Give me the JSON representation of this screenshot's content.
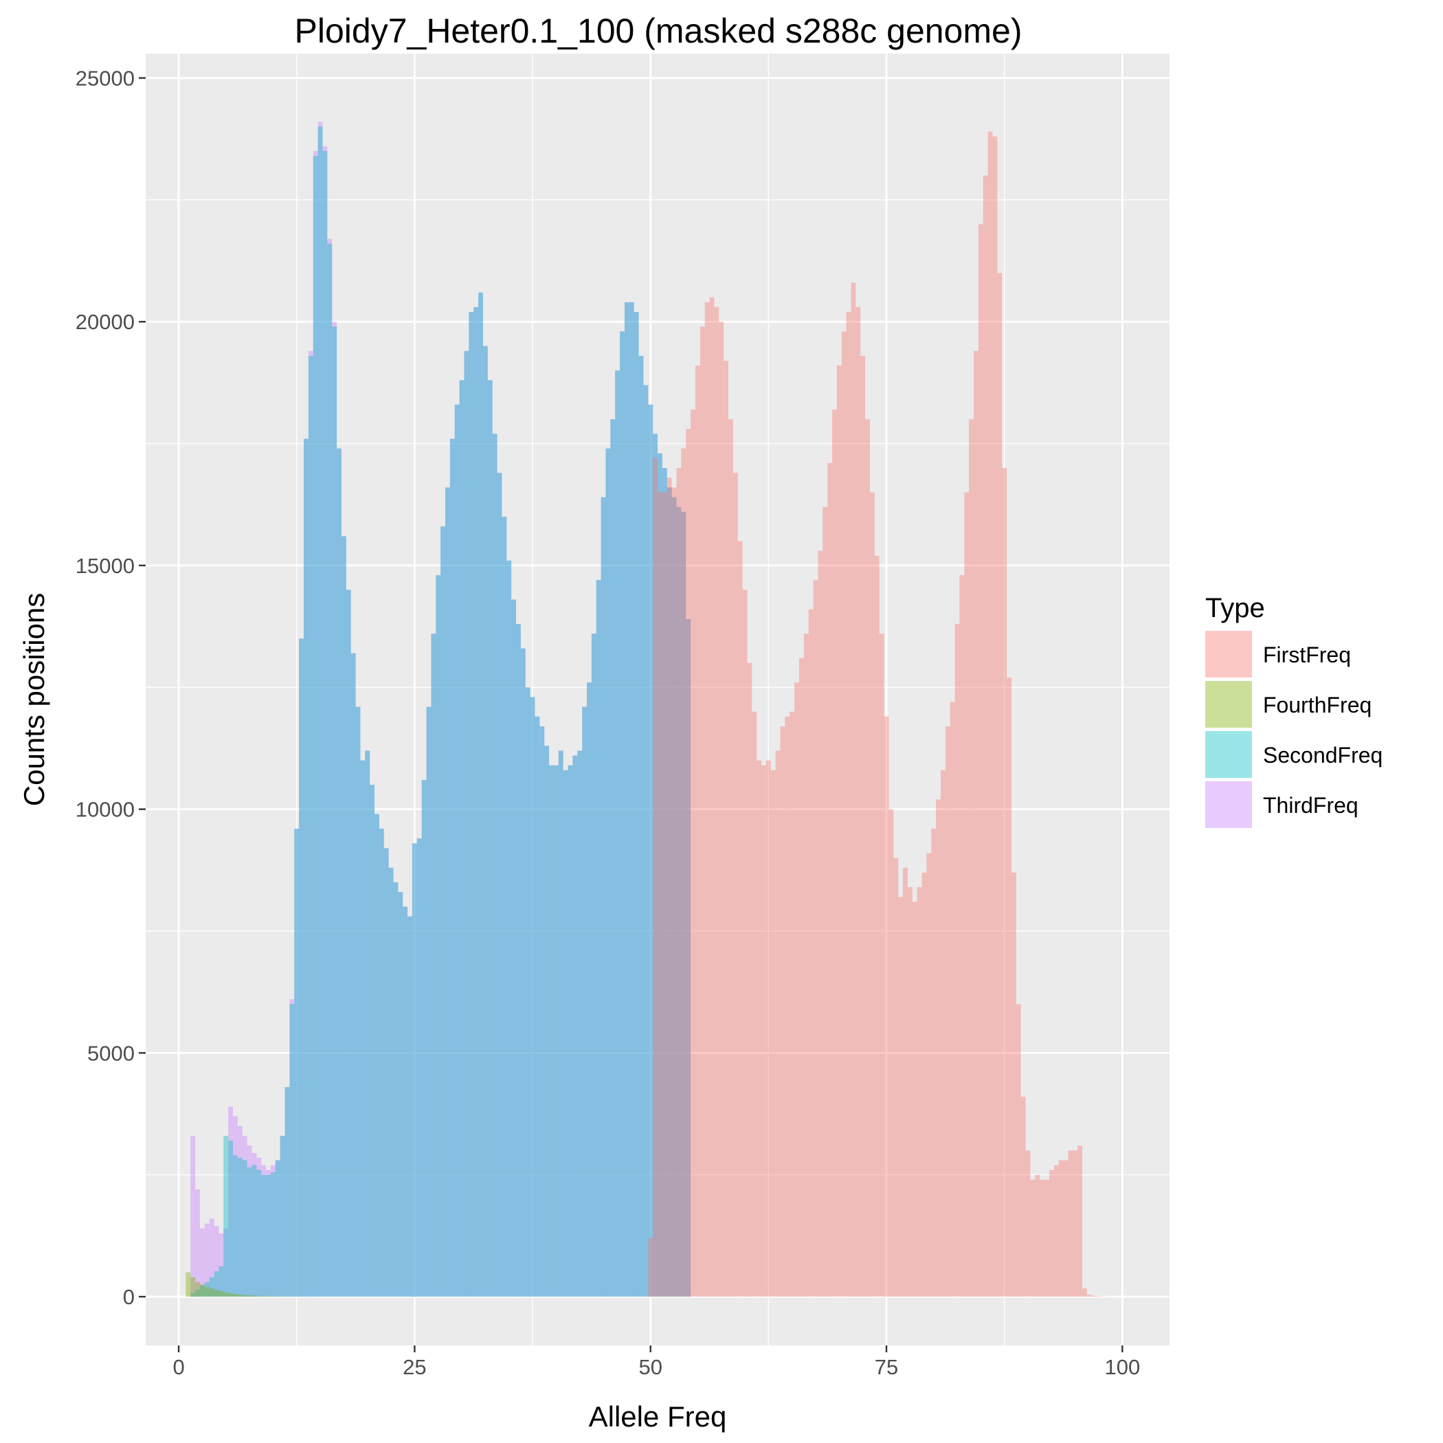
{
  "chart_data": {
    "type": "bar",
    "title": "Ploidy7_Heter0.1_100 (masked s288c genome)",
    "xlabel": "Allele Freq",
    "ylabel": "Counts positions",
    "xlim": [
      -3.5,
      105
    ],
    "ylim": [
      -1000,
      25500
    ],
    "x_ticks": [
      0,
      25,
      50,
      75,
      100
    ],
    "y_ticks": [
      0,
      5000,
      10000,
      15000,
      20000,
      25000
    ],
    "x_tick_labels": [
      "0",
      "25",
      "50",
      "75",
      "100"
    ],
    "y_tick_labels": [
      "0",
      "5000",
      "10000",
      "15000",
      "20000",
      "25000"
    ],
    "bin_width": 0.5,
    "grid": true,
    "panel_background": "#EBEBEB",
    "legend": {
      "title": "Type",
      "position": "right",
      "entries": [
        "FirstFreq",
        "FourthFreq",
        "SecondFreq",
        "ThirdFreq"
      ]
    },
    "series": [
      {
        "name": "FirstFreq",
        "color": "#F8766D",
        "x_start": 49.75,
        "values": [
          1200,
          17200,
          16500,
          16500,
          16800,
          16600,
          17000,
          17400,
          17800,
          18200,
          19100,
          19900,
          20400,
          20500,
          20300,
          20000,
          19200,
          18000,
          16900,
          15500,
          14500,
          13000,
          12000,
          11000,
          10900,
          11000,
          10800,
          11200,
          11700,
          11900,
          12000,
          12600,
          13100,
          13600,
          14100,
          14700,
          15300,
          16200,
          17100,
          18200,
          19100,
          19800,
          20200,
          20800,
          20300,
          19300,
          18000,
          16500,
          15200,
          13600,
          11900,
          10000,
          9000,
          8200,
          8800,
          8400,
          8100,
          8400,
          8700,
          9100,
          9600,
          10200,
          10800,
          11700,
          12200,
          13800,
          14800,
          16500,
          18000,
          19400,
          22000,
          23000,
          23900,
          23800,
          21000,
          17000,
          12700,
          8700,
          6000,
          4100,
          3000,
          2400,
          2500,
          2400,
          2400,
          2600,
          2700,
          2800,
          2800,
          3000,
          3000,
          3100,
          170,
          40,
          20,
          10,
          5,
          3,
          2,
          1,
          1,
          1
        ]
      },
      {
        "name": "FourthFreq",
        "color": "#7CAE00",
        "x_start": 0.75,
        "values": [
          500,
          400,
          300,
          250,
          200,
          170,
          140,
          110,
          90,
          70,
          55,
          45,
          35,
          28,
          22,
          17,
          13,
          10,
          8,
          6,
          5,
          4,
          3,
          2,
          2,
          1,
          1
        ]
      },
      {
        "name": "SecondFreq",
        "color": "#00BFC4",
        "x_start": 0.75,
        "values": [
          0,
          80,
          150,
          230,
          300,
          400,
          520,
          620,
          3300,
          3200,
          2900,
          2850,
          2800,
          2650,
          2700,
          2600,
          2500,
          2500,
          2550,
          2800,
          3300,
          4300,
          6000,
          9600,
          13500,
          17600,
          19300,
          23400,
          24000,
          23500,
          21600,
          19900,
          17400,
          15600,
          14500,
          13200,
          12100,
          11000,
          11200,
          10500,
          9900,
          9600,
          9200,
          8800,
          8500,
          8300,
          8000,
          7800,
          9300,
          9400,
          10600,
          12100,
          13600,
          14800,
          15800,
          16600,
          17600,
          18300,
          18800,
          19400,
          20200,
          20300,
          20600,
          19500,
          18800,
          17700,
          16900,
          16000,
          15100,
          14300,
          13800,
          13300,
          12500,
          12300,
          11900,
          11700,
          11300,
          10900,
          10900,
          11200,
          10800,
          10900,
          11100,
          11200,
          12100,
          12600,
          13600,
          14700,
          16400,
          17400,
          18000,
          19000,
          19800,
          20400,
          20400,
          20200,
          19300,
          18700,
          18300,
          17700,
          17300,
          17000,
          16600,
          16400,
          16200,
          16100,
          13900,
          0
        ]
      },
      {
        "name": "ThirdFreq",
        "color": "#C77CFF",
        "x_start": 0.75,
        "values": [
          0,
          3300,
          2200,
          1400,
          1500,
          1600,
          1450,
          1300,
          1400,
          3900,
          3700,
          3500,
          3300,
          3100,
          2950,
          2850,
          2700,
          2600,
          2700,
          2800,
          3300,
          4300,
          6100,
          9600,
          13500,
          17600,
          19400,
          23500,
          24100,
          23600,
          21700,
          20000,
          17400,
          15600,
          14500,
          13200,
          12100,
          11000,
          11200,
          10500,
          9900,
          9600,
          9200,
          8800,
          8500,
          8300,
          8000,
          7800,
          9300,
          9400,
          10600,
          12100,
          13600,
          14800,
          15800,
          16600,
          17600,
          18300,
          18800,
          19400,
          20200,
          20300,
          20600,
          19500,
          18800,
          17700,
          16900,
          16000,
          15100,
          14300,
          13800,
          13300,
          12500,
          12300,
          11900,
          11700,
          11300,
          10900,
          10900,
          11200,
          10800,
          10900,
          11100,
          11200,
          12100,
          12600,
          13600,
          14700,
          16400,
          17400,
          18000,
          19000,
          19800,
          20400,
          20400,
          20200,
          19300,
          18700,
          18300,
          17700,
          17300,
          17000,
          16600,
          16400,
          16200,
          16100,
          13900,
          0
        ]
      }
    ]
  }
}
